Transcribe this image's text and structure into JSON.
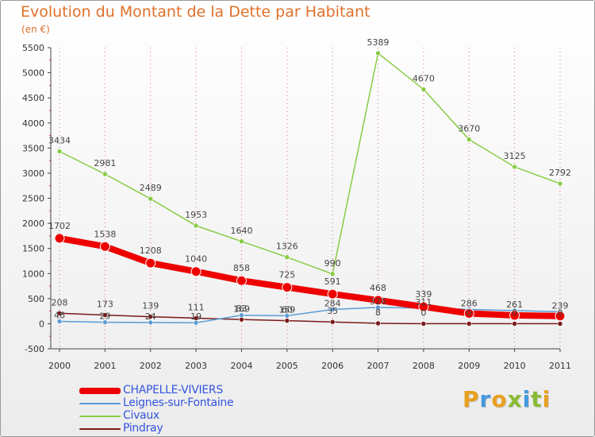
{
  "title": "Evolution du Montant de la Dette par Habitant",
  "subtitle": "(en €)",
  "logo_text": "Proxiti",
  "colors": {
    "title": "#e0702a",
    "grid": "#cc3333",
    "axis": "#444444"
  },
  "chart_data": {
    "type": "line",
    "title": "Evolution du Montant de la Dette par Habitant",
    "subtitle": "(en €)",
    "categories": [
      "2000",
      "2001",
      "2002",
      "2003",
      "2004",
      "2005",
      "2006",
      "2007",
      "2008",
      "2009",
      "2010",
      "2011"
    ],
    "ylim": [
      -500,
      5500
    ],
    "yticks": [
      -500,
      0,
      500,
      1000,
      1500,
      2000,
      2500,
      3000,
      3500,
      4000,
      4500,
      5000,
      5500
    ],
    "grid": "vertical dotted",
    "legend_position": "bottom-left",
    "series": [
      {
        "name": "CHAPELLE-VIVIERS",
        "color": "#ee0000",
        "values": [
          1702,
          1538,
          1208,
          1040,
          858,
          725,
          591,
          468,
          339,
          205,
          166,
          153
        ],
        "labels": [
          "1702",
          "1538",
          "1208",
          "1040",
          "858",
          "725",
          "591",
          "468",
          "339",
          "",
          "",
          ""
        ]
      },
      {
        "name": "Leignes-sur-Fontaine",
        "color": "#5b9bd5",
        "values": [
          46,
          29,
          24,
          19,
          169,
          159,
          284,
          326,
          311,
          286,
          261,
          239
        ],
        "labels": [
          "46",
          "29",
          "24",
          "19",
          "169",
          "159",
          "284",
          "326",
          "311",
          "286",
          "261",
          "239"
        ]
      },
      {
        "name": "Civaux",
        "color": "#88cc44",
        "values": [
          3434,
          2981,
          2489,
          1953,
          1640,
          1326,
          990,
          5389,
          4670,
          3670,
          3125,
          2792
        ],
        "labels": [
          "3434",
          "2981",
          "2489",
          "1953",
          "1640",
          "1326",
          "990",
          "5389",
          "4670",
          "3670",
          "3125",
          "2792"
        ]
      },
      {
        "name": "Pindray",
        "color": "#7a1a1a",
        "values": [
          208,
          173,
          139,
          111,
          83,
          60,
          35,
          8,
          0,
          0,
          0,
          0
        ],
        "labels": [
          "208",
          "173",
          "139",
          "111",
          "83",
          "60",
          "35",
          "8",
          "0",
          "0",
          "0",
          "0"
        ]
      }
    ]
  }
}
